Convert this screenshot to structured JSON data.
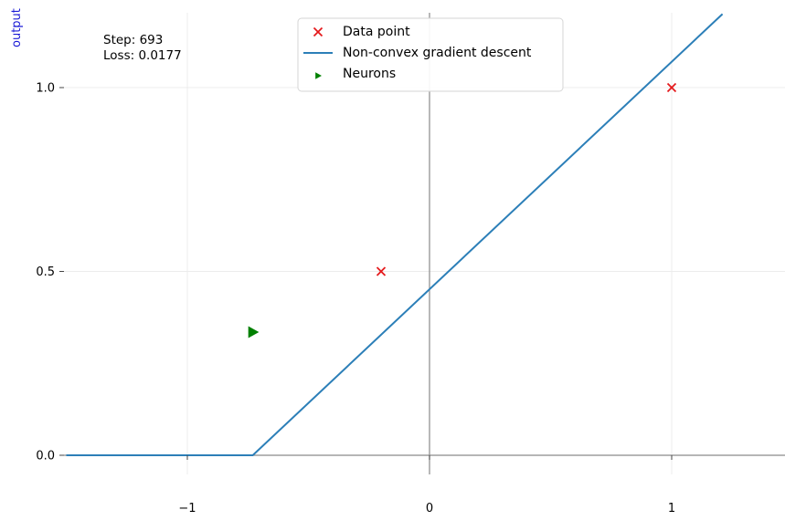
{
  "chart_data": {
    "type": "line",
    "ylabel": "output",
    "xlim": [
      -1.5,
      1.5
    ],
    "ylim": [
      -0.05,
      1.2
    ],
    "x_ticks": [
      -1,
      0,
      1
    ],
    "x_tick_labels": [
      "−1",
      "0",
      "1"
    ],
    "y_ticks": [
      0.0,
      0.5,
      1.0
    ],
    "y_tick_labels": [
      "0.0",
      "0.5",
      "1.0"
    ],
    "grid": true,
    "legend_position": "top-center",
    "annotations": {
      "step": "Step: 693",
      "loss": "Loss: 0.0177"
    },
    "series": [
      {
        "name": "Data point",
        "kind": "scatter",
        "marker": "x",
        "color": "#e41a1c",
        "points": [
          [
            -0.2,
            0.5
          ],
          [
            1.0,
            1.0
          ]
        ]
      },
      {
        "name": "Non-convex gradient descent",
        "kind": "line",
        "color": "#2c7fb8",
        "points": [
          [
            -1.5,
            0.0
          ],
          [
            -0.73,
            0.0
          ],
          [
            1.21,
            1.2
          ]
        ]
      },
      {
        "name": "Neurons",
        "kind": "scatter",
        "marker": "triangle-right",
        "color": "#008000",
        "points": [
          [
            -0.73,
            0.335
          ]
        ]
      }
    ]
  }
}
